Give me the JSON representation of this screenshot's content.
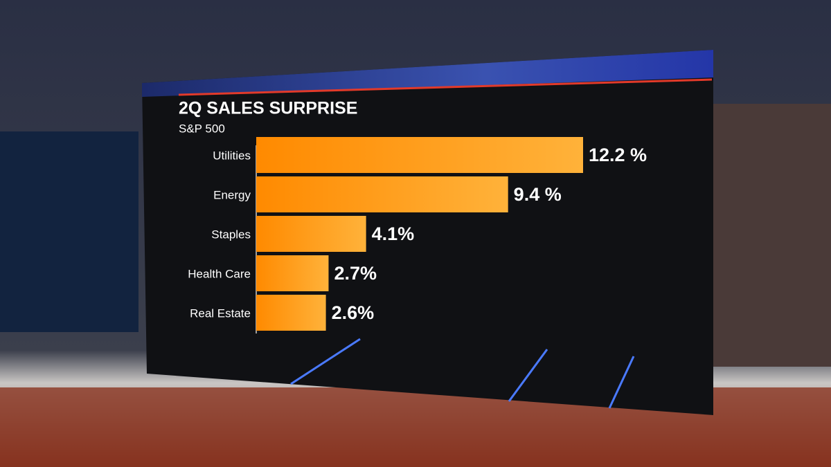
{
  "chart_data": {
    "type": "bar",
    "orientation": "horizontal",
    "title": "2Q SALES SURPRISE",
    "subtitle": "S&P 500",
    "categories": [
      "Utilities",
      "Energy",
      "Staples",
      "Health Care",
      "Real Estate"
    ],
    "values": [
      12.2,
      9.4,
      4.1,
      2.7,
      2.6
    ],
    "value_labels": [
      "12.2 %",
      "9.4 %",
      "4.1%",
      "2.7%",
      "2.6%"
    ],
    "color": "#ff9a10"
  }
}
